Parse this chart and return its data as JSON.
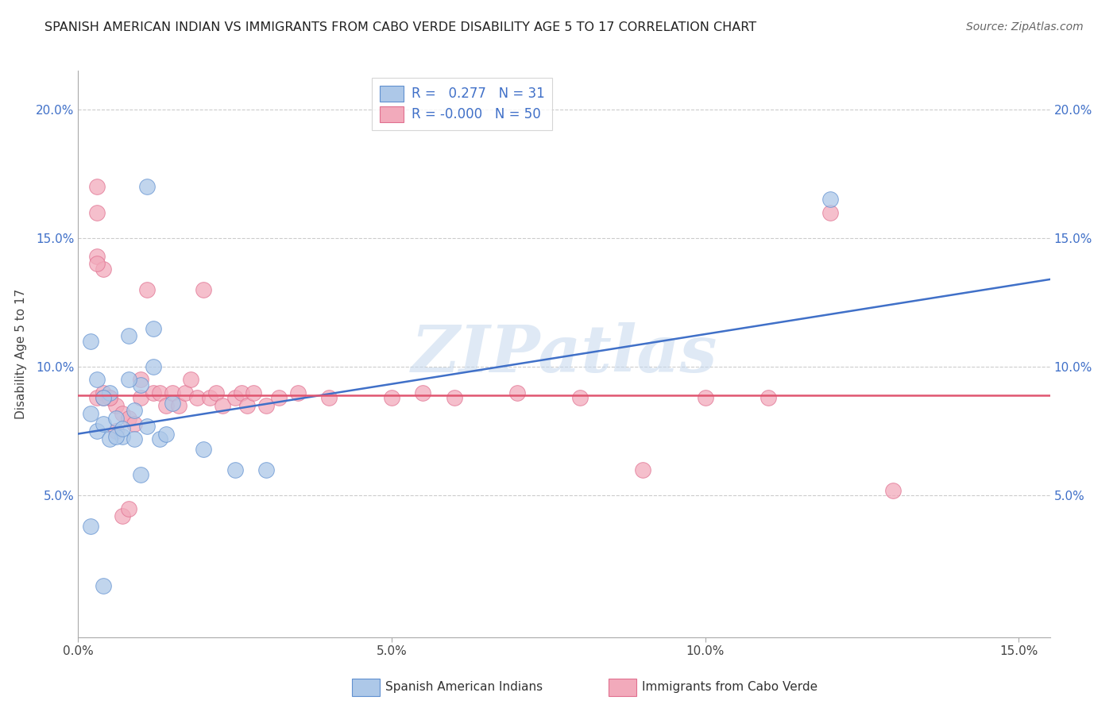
{
  "title": "SPANISH AMERICAN INDIAN VS IMMIGRANTS FROM CABO VERDE DISABILITY AGE 5 TO 17 CORRELATION CHART",
  "source": "Source: ZipAtlas.com",
  "ylabel": "Disability Age 5 to 17",
  "xlim": [
    0.0,
    0.155
  ],
  "ylim": [
    -0.005,
    0.215
  ],
  "xticks": [
    0.0,
    0.05,
    0.1,
    0.15
  ],
  "yticks": [
    0.05,
    0.1,
    0.15,
    0.2
  ],
  "xticklabels": [
    "0.0%",
    "5.0%",
    "10.0%",
    "15.0%"
  ],
  "yticklabels": [
    "5.0%",
    "10.0%",
    "15.0%",
    "20.0%"
  ],
  "blue_R": "0.277",
  "blue_N": "31",
  "pink_R": "-0.000",
  "pink_N": "50",
  "blue_color": "#adc8e8",
  "pink_color": "#f2aabb",
  "blue_edge_color": "#6090d0",
  "pink_edge_color": "#e07090",
  "blue_line_color": "#4070c8",
  "pink_line_color": "#e05570",
  "watermark": "ZIPatlas",
  "legend_label_blue": "Spanish American Indians",
  "legend_label_pink": "Immigrants from Cabo Verde",
  "blue_line_x0": 0.0,
  "blue_line_y0": 0.074,
  "blue_line_x1": 0.155,
  "blue_line_y1": 0.134,
  "pink_line_y": 0.089,
  "blue_scatter_x": [
    0.005,
    0.008,
    0.002,
    0.003,
    0.004,
    0.006,
    0.007,
    0.009,
    0.01,
    0.011,
    0.012,
    0.013,
    0.014,
    0.015,
    0.002,
    0.003,
    0.004,
    0.005,
    0.006,
    0.007,
    0.008,
    0.009,
    0.01,
    0.011,
    0.012,
    0.02,
    0.025,
    0.03,
    0.002,
    0.12,
    0.004
  ],
  "blue_scatter_y": [
    0.09,
    0.112,
    0.082,
    0.075,
    0.078,
    0.08,
    0.073,
    0.083,
    0.093,
    0.077,
    0.1,
    0.072,
    0.074,
    0.086,
    0.11,
    0.095,
    0.088,
    0.072,
    0.073,
    0.076,
    0.095,
    0.072,
    0.058,
    0.17,
    0.115,
    0.068,
    0.06,
    0.06,
    0.038,
    0.165,
    0.015
  ],
  "pink_scatter_x": [
    0.003,
    0.003,
    0.003,
    0.004,
    0.005,
    0.006,
    0.007,
    0.008,
    0.009,
    0.01,
    0.01,
    0.011,
    0.012,
    0.013,
    0.014,
    0.015,
    0.016,
    0.017,
    0.018,
    0.019,
    0.02,
    0.021,
    0.022,
    0.023,
    0.025,
    0.026,
    0.027,
    0.028,
    0.03,
    0.032,
    0.035,
    0.04,
    0.05,
    0.055,
    0.06,
    0.07,
    0.08,
    0.09,
    0.1,
    0.11,
    0.12,
    0.13,
    0.003,
    0.004,
    0.005,
    0.006,
    0.007,
    0.008,
    0.003,
    0.004
  ],
  "pink_scatter_y": [
    0.17,
    0.16,
    0.088,
    0.09,
    0.088,
    0.085,
    0.082,
    0.08,
    0.078,
    0.095,
    0.088,
    0.13,
    0.09,
    0.09,
    0.085,
    0.09,
    0.085,
    0.09,
    0.095,
    0.088,
    0.13,
    0.088,
    0.09,
    0.085,
    0.088,
    0.09,
    0.085,
    0.09,
    0.085,
    0.088,
    0.09,
    0.088,
    0.088,
    0.09,
    0.088,
    0.09,
    0.088,
    0.06,
    0.088,
    0.088,
    0.16,
    0.052,
    0.143,
    0.138,
    0.088,
    0.075,
    0.042,
    0.045,
    0.14,
    0.088
  ]
}
